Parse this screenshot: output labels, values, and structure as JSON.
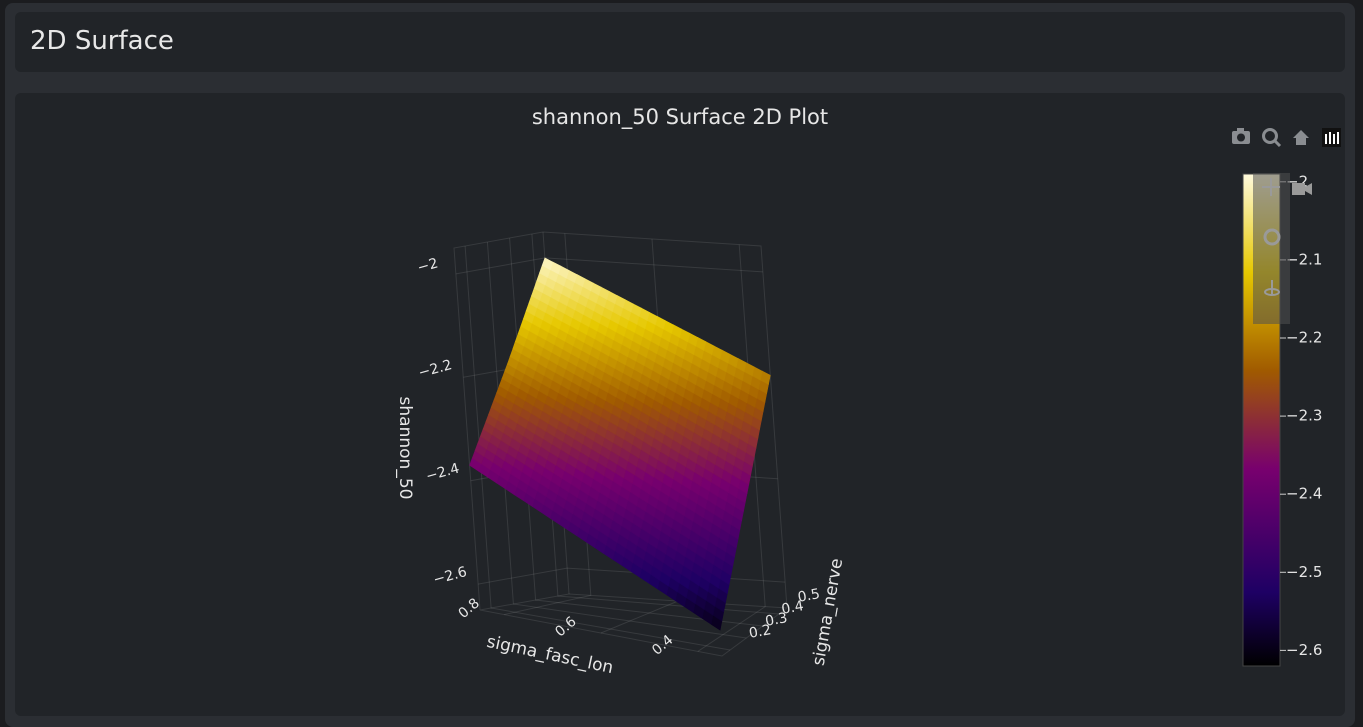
{
  "header": {
    "title": "2D Surface"
  },
  "chart_data": {
    "type": "surface",
    "title": "shannon_50 Surface 2D Plot",
    "x_label": "sigma_fasc_lon",
    "y_label": "sigma_nerve",
    "z_label": "shannon_50",
    "x": [
      0.35,
      0.6,
      0.85
    ],
    "y": [
      0.15,
      0.35,
      0.55
    ],
    "z": [
      [
        -2.6,
        -2.485,
        -2.37
      ],
      [
        -2.4,
        -2.29,
        -2.19
      ],
      [
        -2.2,
        -2.1,
        -2.0
      ]
    ],
    "xlim": [
      0.35,
      0.85
    ],
    "ylim": [
      0.15,
      0.55
    ],
    "zlim": [
      -2.65,
      -1.95
    ],
    "xticks": [
      0.4,
      0.6,
      0.8
    ],
    "yticks": [
      0.2,
      0.3,
      0.4,
      0.5
    ],
    "zticks": [
      {
        "value": -2.6,
        "label": "−2.6"
      },
      {
        "value": -2.4,
        "label": "−2.4"
      },
      {
        "value": -2.2,
        "label": "−2.2"
      },
      {
        "value": -2,
        "label": "−2"
      }
    ],
    "grid": true,
    "colorbar": {
      "lim": [
        -2.62,
        -1.99
      ],
      "ticks": [
        {
          "value": -2.6,
          "label": "−2.6"
        },
        {
          "value": -2.5,
          "label": "−2.5"
        },
        {
          "value": -2.4,
          "label": "−2.4"
        },
        {
          "value": -2.3,
          "label": "−2.3"
        },
        {
          "value": -2.2,
          "label": "−2.2"
        },
        {
          "value": -2.1,
          "label": "−2.1"
        },
        {
          "value": -2,
          "label": "−2"
        }
      ],
      "colorscale": [
        [
          0,
          "#000000"
        ],
        [
          0.15,
          "#1e0064"
        ],
        [
          0.4,
          "#78006e"
        ],
        [
          0.6,
          "#a05a00"
        ],
        [
          0.8,
          "#e6c800"
        ],
        [
          1,
          "#fffadc"
        ]
      ]
    }
  }
}
